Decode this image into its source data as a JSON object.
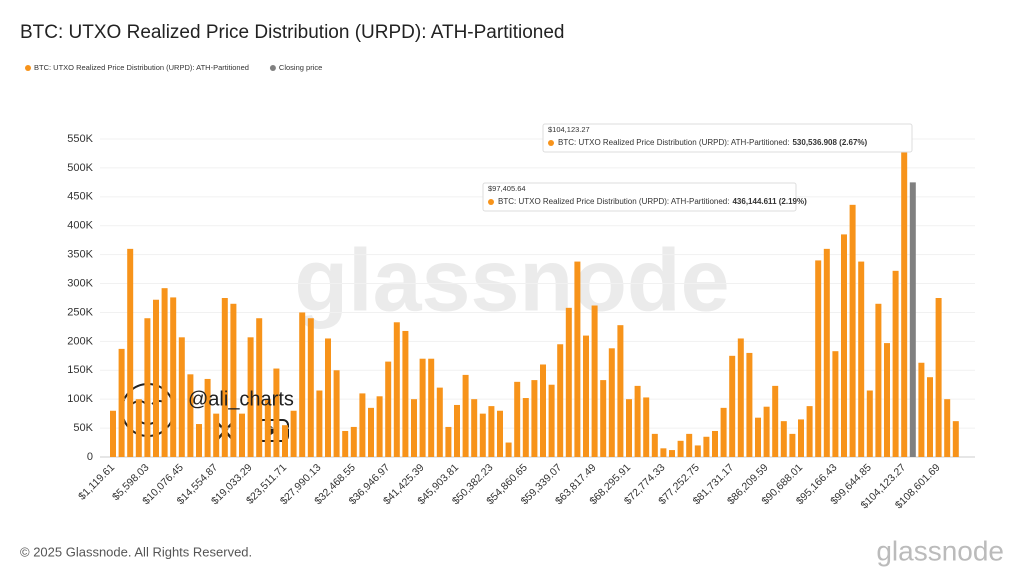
{
  "chart_data": {
    "type": "bar",
    "title": "BTC: UTXO Realized Price Distribution (URPD): ATH-Partitioned",
    "watermark": "glassnode",
    "handle": "@ali_charts",
    "footer": "© 2025 Glassnode. All Rights Reserved.",
    "logo": "glassnode",
    "categories": [
      "$1,119.61",
      null,
      null,
      null,
      "$5,598.03",
      null,
      null,
      null,
      "$10,076.45",
      null,
      null,
      null,
      "$14,554.87",
      null,
      null,
      null,
      "$19,033.29",
      null,
      null,
      null,
      "$23,511.71",
      null,
      null,
      null,
      "$27,990.13",
      null,
      null,
      null,
      "$32,468.55",
      null,
      null,
      null,
      "$36,946.97",
      null,
      null,
      null,
      "$41,425.39",
      null,
      null,
      null,
      "$45,903.81",
      null,
      null,
      null,
      "$50,382.23",
      null,
      null,
      null,
      "$54,860.65",
      null,
      null,
      null,
      "$59,339.07",
      null,
      null,
      null,
      "$63,817.49",
      null,
      null,
      null,
      "$68,295.91",
      null,
      null,
      null,
      "$72,774.33",
      null,
      null,
      null,
      "$77,252.75",
      null,
      null,
      null,
      "$81,731.17",
      null,
      null,
      null,
      "$86,209.59",
      null,
      null,
      null,
      "$90,688.01",
      null,
      null,
      null,
      "$95,166.43",
      null,
      null,
      null,
      "$99,644.85",
      null,
      null,
      null,
      "$104,123.27",
      null,
      null,
      null,
      "$108,601.69",
      null,
      null
    ],
    "series": [
      {
        "name": "BTC: UTXO Realized Price Distribution (URPD): ATH-Partitioned",
        "color": "#f7931a",
        "values": [
          80000,
          187000,
          360000,
          100000,
          240000,
          272000,
          292000,
          276000,
          207000,
          143000,
          57000,
          135000,
          75000,
          275000,
          265000,
          75000,
          207000,
          240000,
          100000,
          153000,
          55000,
          80000,
          250000,
          240000,
          115000,
          205000,
          150000,
          45000,
          52000,
          110000,
          85000,
          105000,
          165000,
          233000,
          218000,
          100000,
          170000,
          170000,
          120000,
          52000,
          90000,
          142000,
          100000,
          75000,
          88000,
          80000,
          25000,
          130000,
          102000,
          133000,
          160000,
          125000,
          195000,
          258000,
          338000,
          210000,
          262000,
          133000,
          188000,
          228000,
          100000,
          123000,
          103000,
          40000,
          15000,
          12000,
          28000,
          40000,
          20000,
          35000,
          45000,
          85000,
          175000,
          205000,
          180000,
          68000,
          87000,
          123000,
          62000,
          40000,
          65000,
          88000,
          340000,
          360000,
          183000,
          385000,
          436144.611,
          338000,
          115000,
          265000,
          197000,
          322000,
          530536.908,
          null,
          163000,
          138000,
          275000,
          100000,
          62000
        ],
        "value_labels": [
          null,
          null,
          null,
          null,
          null,
          null,
          null,
          null,
          null,
          null,
          null,
          null,
          null,
          null,
          null,
          null,
          null,
          null,
          null,
          null,
          null,
          null,
          null,
          null,
          null,
          null,
          null,
          null,
          null,
          null,
          null,
          null,
          null,
          null,
          null,
          null,
          null,
          null,
          null,
          null,
          null,
          null,
          null,
          null,
          null,
          null,
          null,
          null,
          null,
          null,
          null,
          null,
          null,
          null,
          null,
          null,
          null,
          null,
          null,
          null,
          null,
          null,
          null,
          null,
          null,
          null,
          null,
          null,
          null,
          null,
          null,
          null,
          null,
          null,
          null,
          null,
          null,
          null,
          null,
          null,
          null,
          null,
          null,
          null,
          null,
          null,
          "436,144.611 (2.19%)",
          null,
          null,
          null,
          null,
          null,
          "530,536.908 (2.67%)",
          null,
          null,
          null,
          null,
          null,
          null
        ]
      },
      {
        "name": "Closing price",
        "color": "#808080",
        "values": [
          null,
          null,
          null,
          null,
          null,
          null,
          null,
          null,
          null,
          null,
          null,
          null,
          null,
          null,
          null,
          null,
          null,
          null,
          null,
          null,
          null,
          null,
          null,
          null,
          null,
          null,
          null,
          null,
          null,
          null,
          null,
          null,
          null,
          null,
          null,
          null,
          null,
          null,
          null,
          null,
          null,
          null,
          null,
          null,
          null,
          null,
          null,
          null,
          null,
          null,
          null,
          null,
          null,
          null,
          null,
          null,
          null,
          null,
          null,
          null,
          null,
          null,
          null,
          null,
          null,
          null,
          null,
          null,
          null,
          null,
          null,
          null,
          null,
          null,
          null,
          null,
          null,
          null,
          null,
          null,
          null,
          null,
          null,
          null,
          null,
          null,
          null,
          null,
          null,
          null,
          null,
          null,
          null,
          475000,
          null,
          null,
          null,
          null,
          null
        ]
      }
    ],
    "tooltips": [
      {
        "title": "$97,405.64",
        "label": "BTC: UTXO Realized Price Distribution (URPD): ATH-Partitioned:"
      },
      {
        "title": "$104,123.27",
        "label": "BTC: UTXO Realized Price Distribution (URPD): ATH-Partitioned:"
      }
    ],
    "ylim": [
      0,
      550000
    ],
    "yticks": [
      0,
      {
        "value": 50000,
        "label": "50K"
      },
      {
        "value": 100000,
        "label": "100K"
      },
      {
        "value": 150000,
        "label": "150K"
      },
      {
        "value": 200000,
        "label": "200K"
      },
      {
        "value": 250000,
        "label": "250K"
      },
      {
        "value": 300000,
        "label": "300K"
      },
      {
        "value": 350000,
        "label": "350K"
      },
      {
        "value": 400000,
        "label": "400K"
      },
      {
        "value": 450000,
        "label": "450K"
      },
      {
        "value": 500000,
        "label": "500K"
      },
      {
        "value": 550000,
        "label": "550K"
      }
    ],
    "grid": true
  }
}
